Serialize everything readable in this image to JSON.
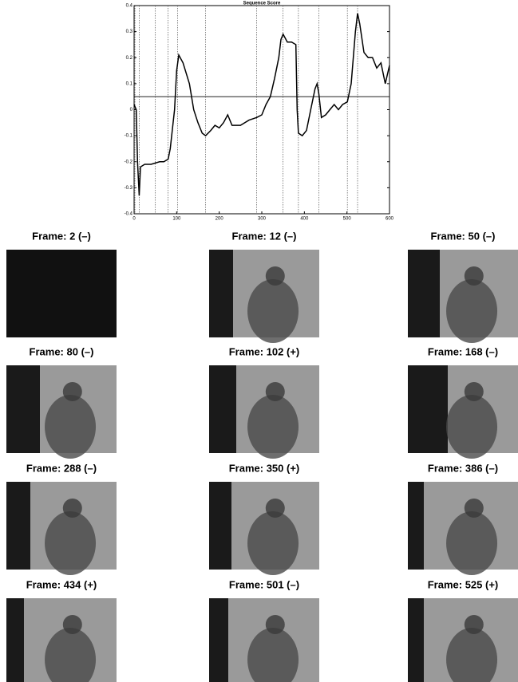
{
  "chart_data": {
    "type": "line",
    "title": "Sequence Score",
    "x": [
      0,
      5,
      8,
      12,
      15,
      25,
      40,
      60,
      70,
      80,
      85,
      95,
      100,
      105,
      115,
      130,
      140,
      150,
      160,
      168,
      180,
      190,
      200,
      210,
      220,
      230,
      250,
      270,
      288,
      300,
      310,
      320,
      330,
      340,
      345,
      350,
      360,
      370,
      380,
      383,
      386,
      395,
      405,
      415,
      425,
      430,
      434,
      440,
      450,
      460,
      470,
      480,
      490,
      501,
      510,
      520,
      525,
      530,
      540,
      550,
      560,
      570,
      580,
      590,
      600
    ],
    "values": [
      0.02,
      0.0,
      -0.2,
      -0.33,
      -0.22,
      -0.21,
      -0.21,
      -0.2,
      -0.2,
      -0.19,
      -0.15,
      0.0,
      0.15,
      0.21,
      0.18,
      0.1,
      0.0,
      -0.05,
      -0.09,
      -0.1,
      -0.08,
      -0.06,
      -0.07,
      -0.05,
      -0.02,
      -0.06,
      -0.06,
      -0.04,
      -0.03,
      -0.02,
      0.02,
      0.05,
      0.12,
      0.2,
      0.27,
      0.29,
      0.26,
      0.26,
      0.25,
      0.0,
      -0.09,
      -0.1,
      -0.08,
      0.0,
      0.08,
      0.1,
      0.06,
      -0.03,
      -0.02,
      0.0,
      0.02,
      0.0,
      0.02,
      0.03,
      0.1,
      0.3,
      0.37,
      0.33,
      0.22,
      0.2,
      0.2,
      0.16,
      0.18,
      0.1,
      0.17
    ],
    "color": "#000000",
    "threshold": 0.05,
    "vlines": [
      2,
      12,
      50,
      80,
      102,
      168,
      288,
      350,
      386,
      434,
      501,
      525
    ],
    "xlim": [
      0,
      600
    ],
    "xticks": [
      0,
      100,
      200,
      300,
      400,
      500,
      600
    ],
    "ylim": [
      -0.4,
      0.4
    ],
    "yticks": [
      -0.4,
      -0.3,
      -0.2,
      -0.1,
      0,
      0.1,
      0.2,
      0.3,
      0.4
    ]
  },
  "frames": [
    "Frame: 2 (–)",
    "Frame: 12 (–)",
    "Frame: 50 (–)",
    "Frame: 80 (–)",
    "Frame: 102 (+)",
    "Frame: 168 (–)",
    "Frame: 288 (–)",
    "Frame: 350 (+)",
    "Frame: 386 (–)",
    "Frame: 434 (+)",
    "Frame: 501 (–)",
    "Frame: 525 (+)"
  ]
}
